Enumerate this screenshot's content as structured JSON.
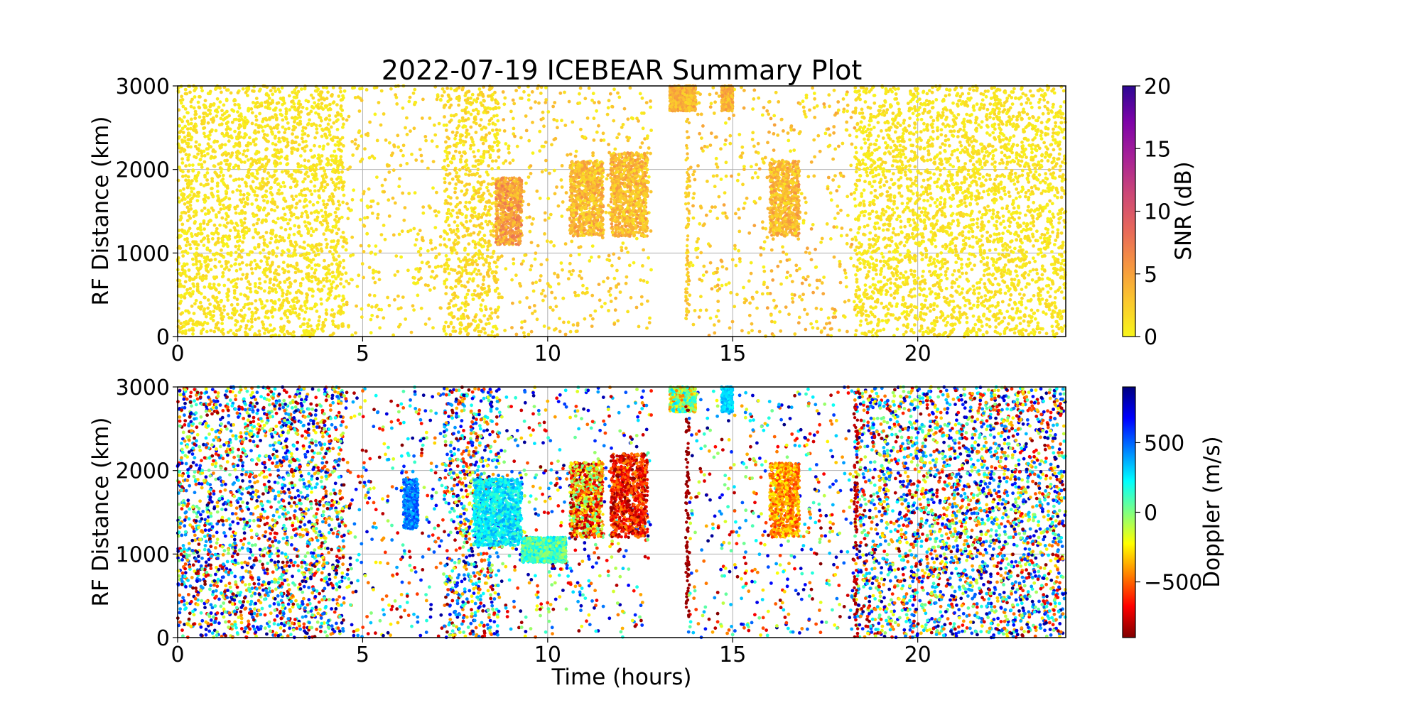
{
  "chart_data": [
    {
      "type": "scatter",
      "title": "2022-07-19 ICEBEAR Summary Plot",
      "xlabel": "",
      "ylabel": "RF Distance (km)",
      "xlim": [
        0,
        24
      ],
      "ylim": [
        0,
        3000
      ],
      "x_ticks": [
        0,
        5,
        10,
        15,
        20
      ],
      "y_ticks": [
        0,
        1000,
        2000,
        3000
      ],
      "grid": true,
      "colorbar": {
        "label": "SNR (dB)",
        "range": [
          0,
          20
        ],
        "ticks": [
          0,
          5,
          10,
          15,
          20
        ],
        "colors": [
          "#f8f51a",
          "#fbc72e",
          "#f69541",
          "#e7675b",
          "#cc4777",
          "#a72197",
          "#7e03a8",
          "#2d0893"
        ]
      },
      "dense_regions": [
        {
          "x_range": [
            0.0,
            4.5
          ],
          "y_range": [
            0,
            3000
          ],
          "value_range": [
            0,
            2
          ]
        },
        {
          "x_range": [
            7.2,
            8.7
          ],
          "y_range": [
            0,
            3000
          ],
          "value_range": [
            0,
            3
          ]
        },
        {
          "x_range": [
            18.3,
            24.0
          ],
          "y_range": [
            0,
            3000
          ],
          "value_range": [
            0,
            2
          ]
        }
      ],
      "sparse_regions": [
        {
          "x_range": [
            4.5,
            7.2
          ],
          "y_range": [
            0,
            3000
          ],
          "value_range": [
            0,
            3
          ]
        },
        {
          "x_range": [
            8.7,
            10.0
          ],
          "y_range": [
            0,
            3000
          ],
          "value_range": [
            0,
            4
          ]
        },
        {
          "x_range": [
            10.0,
            12.8
          ],
          "y_range": [
            0,
            3000
          ],
          "value_range": [
            0,
            4
          ]
        },
        {
          "x_range": [
            13.8,
            18.3
          ],
          "y_range": [
            0,
            3000
          ],
          "value_range": [
            0,
            5
          ]
        }
      ],
      "echo_features": [
        {
          "x_range": [
            8.6,
            9.3
          ],
          "y_range": [
            1100,
            1900
          ],
          "value_range": [
            2,
            8
          ]
        },
        {
          "x_range": [
            10.6,
            11.5
          ],
          "y_range": [
            1200,
            2100
          ],
          "value_range": [
            1,
            6
          ]
        },
        {
          "x_range": [
            11.7,
            12.7
          ],
          "y_range": [
            1200,
            2200
          ],
          "value_range": [
            1,
            6
          ]
        },
        {
          "x_range": [
            16.0,
            16.8
          ],
          "y_range": [
            1200,
            2100
          ],
          "value_range": [
            1,
            6
          ]
        },
        {
          "x_range": [
            13.3,
            14.0
          ],
          "y_range": [
            2700,
            3000
          ],
          "value_range": [
            2,
            6
          ]
        },
        {
          "x_range": [
            14.7,
            15.0
          ],
          "y_range": [
            2700,
            3000
          ],
          "value_range": [
            2,
            6
          ]
        },
        {
          "x_range": [
            13.73,
            13.83
          ],
          "y_range": [
            200,
            2950
          ],
          "value_range": [
            1,
            4
          ]
        }
      ]
    },
    {
      "type": "scatter",
      "title": "",
      "xlabel": "Time (hours)",
      "ylabel": "RF Distance (km)",
      "xlim": [
        0,
        24
      ],
      "ylim": [
        0,
        3000
      ],
      "x_ticks": [
        0,
        5,
        10,
        15,
        20
      ],
      "y_ticks": [
        0,
        1000,
        2000,
        3000
      ],
      "grid": true,
      "colorbar": {
        "label": "Doppler (m/s)",
        "range": [
          -900,
          900
        ],
        "ticks": [
          -500,
          0,
          500
        ],
        "tick_labels": [
          "−500",
          "0",
          "500"
        ],
        "colors": [
          "#800000",
          "#ff0000",
          "#ff8000",
          "#ffff00",
          "#80ff80",
          "#00ffff",
          "#0080ff",
          "#0000ff",
          "#00007f"
        ]
      },
      "dense_regions": [
        {
          "x_range": [
            0.0,
            4.5
          ],
          "y_range": [
            0,
            3000
          ],
          "value_range": [
            -900,
            900
          ]
        },
        {
          "x_range": [
            7.2,
            8.7
          ],
          "y_range": [
            0,
            3000
          ],
          "value_range": [
            -900,
            900
          ]
        },
        {
          "x_range": [
            18.3,
            24.0
          ],
          "y_range": [
            0,
            3000
          ],
          "value_range": [
            -900,
            900
          ]
        }
      ],
      "sparse_regions": [
        {
          "x_range": [
            4.5,
            7.2
          ],
          "y_range": [
            0,
            3000
          ],
          "value_range": [
            -900,
            900
          ]
        },
        {
          "x_range": [
            8.7,
            10.0
          ],
          "y_range": [
            0,
            3000
          ],
          "value_range": [
            -900,
            900
          ]
        },
        {
          "x_range": [
            10.0,
            12.8
          ],
          "y_range": [
            0,
            3000
          ],
          "value_range": [
            -900,
            900
          ]
        },
        {
          "x_range": [
            13.8,
            18.3
          ],
          "y_range": [
            0,
            3000
          ],
          "value_range": [
            -900,
            900
          ]
        }
      ],
      "echo_features": [
        {
          "x_range": [
            6.1,
            6.5
          ],
          "y_range": [
            1300,
            1900
          ],
          "value_range": [
            300,
            600
          ]
        },
        {
          "x_range": [
            8.0,
            9.3
          ],
          "y_range": [
            1100,
            1900
          ],
          "value_range": [
            100,
            400
          ]
        },
        {
          "x_range": [
            9.3,
            10.5
          ],
          "y_range": [
            900,
            1200
          ],
          "value_range": [
            -100,
            300
          ]
        },
        {
          "x_range": [
            10.6,
            11.5
          ],
          "y_range": [
            1200,
            2100
          ],
          "value_range": [
            -900,
            100
          ]
        },
        {
          "x_range": [
            11.7,
            12.7
          ],
          "y_range": [
            1200,
            2200
          ],
          "value_range": [
            -900,
            -400
          ]
        },
        {
          "x_range": [
            16.0,
            16.8
          ],
          "y_range": [
            1200,
            2100
          ],
          "value_range": [
            -600,
            -200
          ]
        },
        {
          "x_range": [
            13.3,
            14.0
          ],
          "y_range": [
            2700,
            3000
          ],
          "value_range": [
            -500,
            300
          ]
        },
        {
          "x_range": [
            14.7,
            15.0
          ],
          "y_range": [
            2700,
            3000
          ],
          "value_range": [
            200,
            400
          ]
        },
        {
          "x_range": [
            13.73,
            13.83
          ],
          "y_range": [
            200,
            2950
          ],
          "value_range": [
            -900,
            -800
          ]
        },
        {
          "x_range": [
            18.28,
            18.38
          ],
          "y_range": [
            0,
            3000
          ],
          "value_range": [
            -900,
            -700
          ]
        }
      ]
    }
  ]
}
